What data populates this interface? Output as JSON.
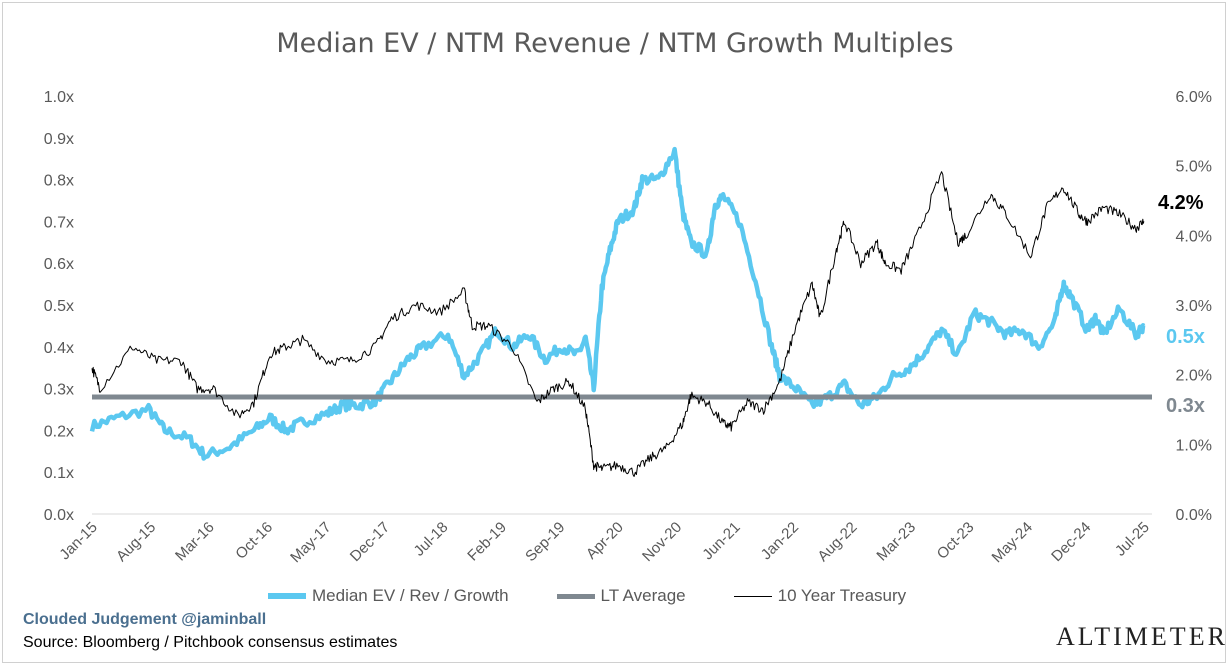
{
  "chart_data": {
    "type": "line",
    "title": "Median EV / NTM Revenue / NTM Growth Multiples",
    "x_tick_labels": [
      "Jan-15",
      "Aug-15",
      "Mar-16",
      "Oct-16",
      "May-17",
      "Dec-17",
      "Jul-18",
      "Feb-19",
      "Sep-19",
      "Apr-20",
      "Nov-20",
      "Jun-21",
      "Jan-22",
      "Aug-22",
      "Mar-23",
      "Oct-23",
      "May-24",
      "Dec-24",
      "Jul-25"
    ],
    "x_range": [
      "2015-01",
      "2025-12"
    ],
    "y_left": {
      "range": [
        0,
        1.0
      ],
      "ticks": [
        "0.0x",
        "0.1x",
        "0.2x",
        "0.3x",
        "0.4x",
        "0.5x",
        "0.6x",
        "0.7x",
        "0.8x",
        "0.9x",
        "1.0x"
      ]
    },
    "y_right": {
      "range": [
        0,
        6.0
      ],
      "ticks": [
        "0.0%",
        "1.0%",
        "2.0%",
        "3.0%",
        "4.0%",
        "5.0%",
        "6.0%"
      ]
    },
    "grid": false,
    "legend_position": "bottom",
    "series": [
      {
        "name": "Median EV / Rev / Growth",
        "axis": "left",
        "color": "#5BC8F0",
        "x": [
          "2015-01",
          "2015-04",
          "2015-08",
          "2015-10",
          "2016-01",
          "2016-03",
          "2016-06",
          "2016-09",
          "2016-11",
          "2017-01",
          "2017-03",
          "2017-06",
          "2017-08",
          "2017-10",
          "2017-12",
          "2018-02",
          "2018-04",
          "2018-06",
          "2018-09",
          "2018-11",
          "2019-01",
          "2019-03",
          "2019-05",
          "2019-07",
          "2019-09",
          "2019-11",
          "2020-01",
          "2020-02",
          "2020-03",
          "2020-04",
          "2020-05",
          "2020-06",
          "2020-08",
          "2020-09",
          "2020-11",
          "2021-01",
          "2021-02",
          "2021-03",
          "2021-05",
          "2021-06",
          "2021-07",
          "2021-09",
          "2021-11",
          "2022-01",
          "2022-02",
          "2022-04",
          "2022-06",
          "2022-08",
          "2022-10",
          "2022-12",
          "2023-02",
          "2023-04",
          "2023-06",
          "2023-08",
          "2023-10",
          "2023-12",
          "2024-02",
          "2024-04",
          "2024-06",
          "2024-08",
          "2024-10",
          "2024-12",
          "2025-01",
          "2025-02",
          "2025-04",
          "2025-05",
          "2025-06",
          "2025-08",
          "2025-10",
          "2025-11"
        ],
        "values": [
          0.21,
          0.23,
          0.25,
          0.2,
          0.18,
          0.14,
          0.16,
          0.2,
          0.23,
          0.2,
          0.22,
          0.24,
          0.26,
          0.26,
          0.27,
          0.32,
          0.37,
          0.4,
          0.43,
          0.33,
          0.38,
          0.44,
          0.4,
          0.43,
          0.37,
          0.4,
          0.38,
          0.42,
          0.3,
          0.54,
          0.63,
          0.7,
          0.73,
          0.8,
          0.8,
          0.87,
          0.72,
          0.65,
          0.62,
          0.74,
          0.76,
          0.7,
          0.56,
          0.4,
          0.33,
          0.3,
          0.26,
          0.28,
          0.31,
          0.26,
          0.28,
          0.33,
          0.35,
          0.39,
          0.44,
          0.38,
          0.48,
          0.46,
          0.43,
          0.44,
          0.4,
          0.46,
          0.55,
          0.52,
          0.44,
          0.47,
          0.43,
          0.49,
          0.43,
          0.45
        ]
      },
      {
        "name": "LT Average",
        "axis": "left",
        "color": "#7F8890",
        "value": 0.28
      },
      {
        "name": "10 Year Treasury",
        "axis": "right",
        "color": "#000000",
        "x": [
          "2015-01",
          "2015-02",
          "2015-06",
          "2015-09",
          "2015-12",
          "2016-02",
          "2016-04",
          "2016-07",
          "2016-09",
          "2016-11",
          "2017-01",
          "2017-03",
          "2017-06",
          "2017-09",
          "2017-12",
          "2018-02",
          "2018-05",
          "2018-08",
          "2018-11",
          "2018-12",
          "2019-02",
          "2019-05",
          "2019-08",
          "2019-10",
          "2019-12",
          "2020-02",
          "2020-03",
          "2020-04",
          "2020-06",
          "2020-08",
          "2020-10",
          "2020-12",
          "2021-02",
          "2021-03",
          "2021-05",
          "2021-07",
          "2021-08",
          "2021-10",
          "2021-12",
          "2022-02",
          "2022-04",
          "2022-06",
          "2022-07",
          "2022-09",
          "2022-10",
          "2022-12",
          "2023-02",
          "2023-03",
          "2023-05",
          "2023-07",
          "2023-10",
          "2023-12",
          "2024-01",
          "2024-04",
          "2024-06",
          "2024-09",
          "2024-11",
          "2025-01",
          "2025-03",
          "2025-04",
          "2025-06",
          "2025-08",
          "2025-10",
          "2025-11"
        ],
        "values": [
          2.1,
          1.8,
          2.4,
          2.2,
          2.2,
          1.8,
          1.8,
          1.4,
          1.6,
          2.3,
          2.4,
          2.5,
          2.2,
          2.2,
          2.4,
          2.8,
          3.0,
          2.9,
          3.2,
          2.7,
          2.7,
          2.4,
          1.6,
          1.8,
          1.9,
          1.5,
          0.7,
          0.65,
          0.7,
          0.6,
          0.8,
          0.95,
          1.3,
          1.7,
          1.6,
          1.3,
          1.25,
          1.6,
          1.5,
          1.9,
          2.7,
          3.3,
          2.8,
          3.8,
          4.2,
          3.6,
          3.9,
          3.6,
          3.5,
          4.0,
          4.9,
          3.9,
          4.0,
          4.6,
          4.3,
          3.7,
          4.4,
          4.7,
          4.3,
          4.2,
          4.4,
          4.3,
          4.1,
          4.2
        ]
      }
    ],
    "annotations": {
      "treasury_last": "4.2%",
      "median_last": "0.5x",
      "average": "0.3x"
    }
  },
  "legend": {
    "median": "Median EV / Rev / Growth",
    "average": "LT Average",
    "treasury": "10 Year Treasury"
  },
  "footer": {
    "credit": "Clouded Judgement @jaminball",
    "source": "Source: Bloomberg / Pitchbook consensus estimates",
    "logo": "ALTIMETER"
  }
}
